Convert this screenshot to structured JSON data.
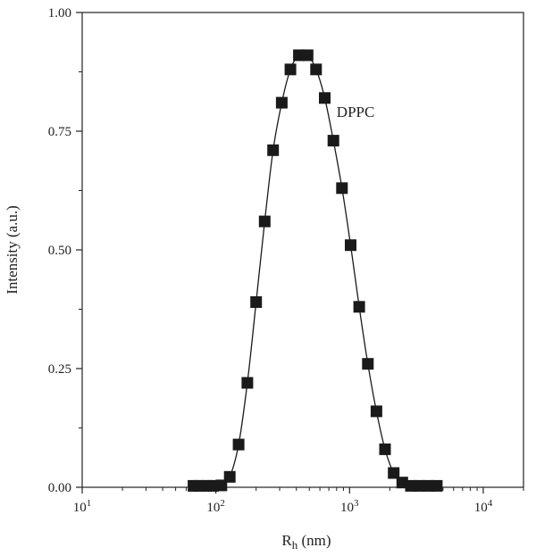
{
  "chart_data": {
    "type": "scatter",
    "title": "",
    "xlabel_main": "R",
    "xlabel_sub": "h",
    "xlabel_unit": " (nm)",
    "ylabel": "Intensity (a.u.)",
    "xscale": "log",
    "xlim": [
      10,
      20000
    ],
    "ylim": [
      0,
      1.0
    ],
    "grid": false,
    "x_ticks": [
      10,
      100,
      1000,
      10000
    ],
    "x_tick_labels": [
      {
        "base": "10",
        "exp": "1"
      },
      {
        "base": "10",
        "exp": "2"
      },
      {
        "base": "10",
        "exp": "3"
      },
      {
        "base": "10",
        "exp": "4"
      }
    ],
    "y_ticks": [
      0,
      0.25,
      0.5,
      0.75,
      1.0
    ],
    "y_tick_labels": [
      "0.00",
      "0.25",
      "0.50",
      "0.75",
      "1.00"
    ],
    "annotation": "DPPC",
    "series": [
      {
        "marker": "square",
        "color": "#1a1a1a",
        "x": [
          68,
          75,
          85,
          95,
          110,
          127,
          148,
          172,
          200,
          232,
          268,
          311,
          361,
          418,
          485,
          562,
          652,
          757,
          878,
          1018,
          1181,
          1370,
          1589,
          1843,
          2138,
          2480,
          2876,
          3336,
          3870,
          4489
        ],
        "y": [
          0.003,
          0.003,
          0.003,
          0.003,
          0.004,
          0.022,
          0.09,
          0.22,
          0.39,
          0.56,
          0.71,
          0.81,
          0.88,
          0.91,
          0.91,
          0.88,
          0.82,
          0.73,
          0.63,
          0.51,
          0.38,
          0.26,
          0.16,
          0.08,
          0.03,
          0.01,
          0.003,
          0.003,
          0.003,
          0.003
        ]
      }
    ]
  }
}
